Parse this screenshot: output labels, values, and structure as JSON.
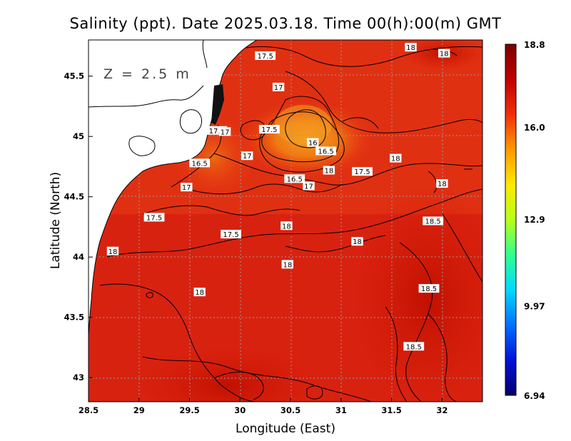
{
  "title": "Salinity (ppt). Date 2025.03.18. Time 00(h):00(m) GMT",
  "depth_label": "Z = 2.5 m",
  "colors": {
    "sea_deep_red": "#d81e08",
    "sea_mid_red": "#e63410",
    "fresh_orange": "#f07a12",
    "land": "#ffffff"
  },
  "chart_data": {
    "type": "heatmap",
    "title": "Salinity (ppt). Date 2025.03.18. Time 00(h):00(m) GMT",
    "xlabel": "Longitude (East)",
    "ylabel": "Latitude (North)",
    "xlim": [
      28.5,
      32.4
    ],
    "ylim": [
      42.8,
      45.8
    ],
    "x_ticks": [
      "28.5",
      "29",
      "29.5",
      "30",
      "30.5",
      "31",
      "31.5",
      "32"
    ],
    "y_ticks": [
      "43",
      "43.5",
      "44",
      "44.5",
      "45",
      "45.5"
    ],
    "grid": true,
    "colorbar": {
      "min": 6.94,
      "max": 18.8,
      "tick_labels": [
        "18.8",
        "16.0",
        "12.9",
        "9.97",
        "6.94"
      ],
      "tick_values": [
        18.8,
        16.0,
        12.9,
        9.97,
        6.94
      ],
      "colors": [
        "#08006a",
        "#0010d8",
        "#0070ff",
        "#00d8ff",
        "#30ff90",
        "#b8ff18",
        "#ffe800",
        "#ff9a00",
        "#f03008",
        "#c00000",
        "#7a0000"
      ]
    },
    "contour_labels": [
      {
        "text": "18",
        "lon": 31.69,
        "lat": 45.74
      },
      {
        "text": "18",
        "lon": 32.02,
        "lat": 45.69
      },
      {
        "text": "17.5",
        "lon": 30.25,
        "lat": 45.67
      },
      {
        "text": "17",
        "lon": 30.38,
        "lat": 45.41
      },
      {
        "text": "17.5",
        "lon": 30.29,
        "lat": 45.06
      },
      {
        "text": "17.5",
        "lon": 29.77,
        "lat": 45.05
      },
      {
        "text": "17",
        "lon": 29.85,
        "lat": 45.04
      },
      {
        "text": "16",
        "lon": 30.72,
        "lat": 44.95
      },
      {
        "text": "16.5",
        "lon": 30.85,
        "lat": 44.88
      },
      {
        "text": "17",
        "lon": 30.07,
        "lat": 44.84
      },
      {
        "text": "18",
        "lon": 31.54,
        "lat": 44.82
      },
      {
        "text": "16.5",
        "lon": 29.6,
        "lat": 44.78
      },
      {
        "text": "18",
        "lon": 30.88,
        "lat": 44.72
      },
      {
        "text": "17.5",
        "lon": 31.21,
        "lat": 44.71
      },
      {
        "text": "16.5",
        "lon": 30.54,
        "lat": 44.65
      },
      {
        "text": "17",
        "lon": 30.68,
        "lat": 44.59
      },
      {
        "text": "18",
        "lon": 32.0,
        "lat": 44.61
      },
      {
        "text": "17",
        "lon": 29.47,
        "lat": 44.58
      },
      {
        "text": "17.5",
        "lon": 29.15,
        "lat": 44.33
      },
      {
        "text": "18",
        "lon": 30.46,
        "lat": 44.26
      },
      {
        "text": "18.5",
        "lon": 31.91,
        "lat": 44.3
      },
      {
        "text": "17.5",
        "lon": 29.91,
        "lat": 44.19
      },
      {
        "text": "18",
        "lon": 31.16,
        "lat": 44.13
      },
      {
        "text": "18",
        "lon": 28.74,
        "lat": 44.05
      },
      {
        "text": "18",
        "lon": 30.47,
        "lat": 43.94
      },
      {
        "text": "18.5",
        "lon": 31.87,
        "lat": 43.74
      },
      {
        "text": "18",
        "lon": 29.6,
        "lat": 43.71
      },
      {
        "text": "18.5",
        "lon": 31.72,
        "lat": 43.26
      }
    ]
  }
}
